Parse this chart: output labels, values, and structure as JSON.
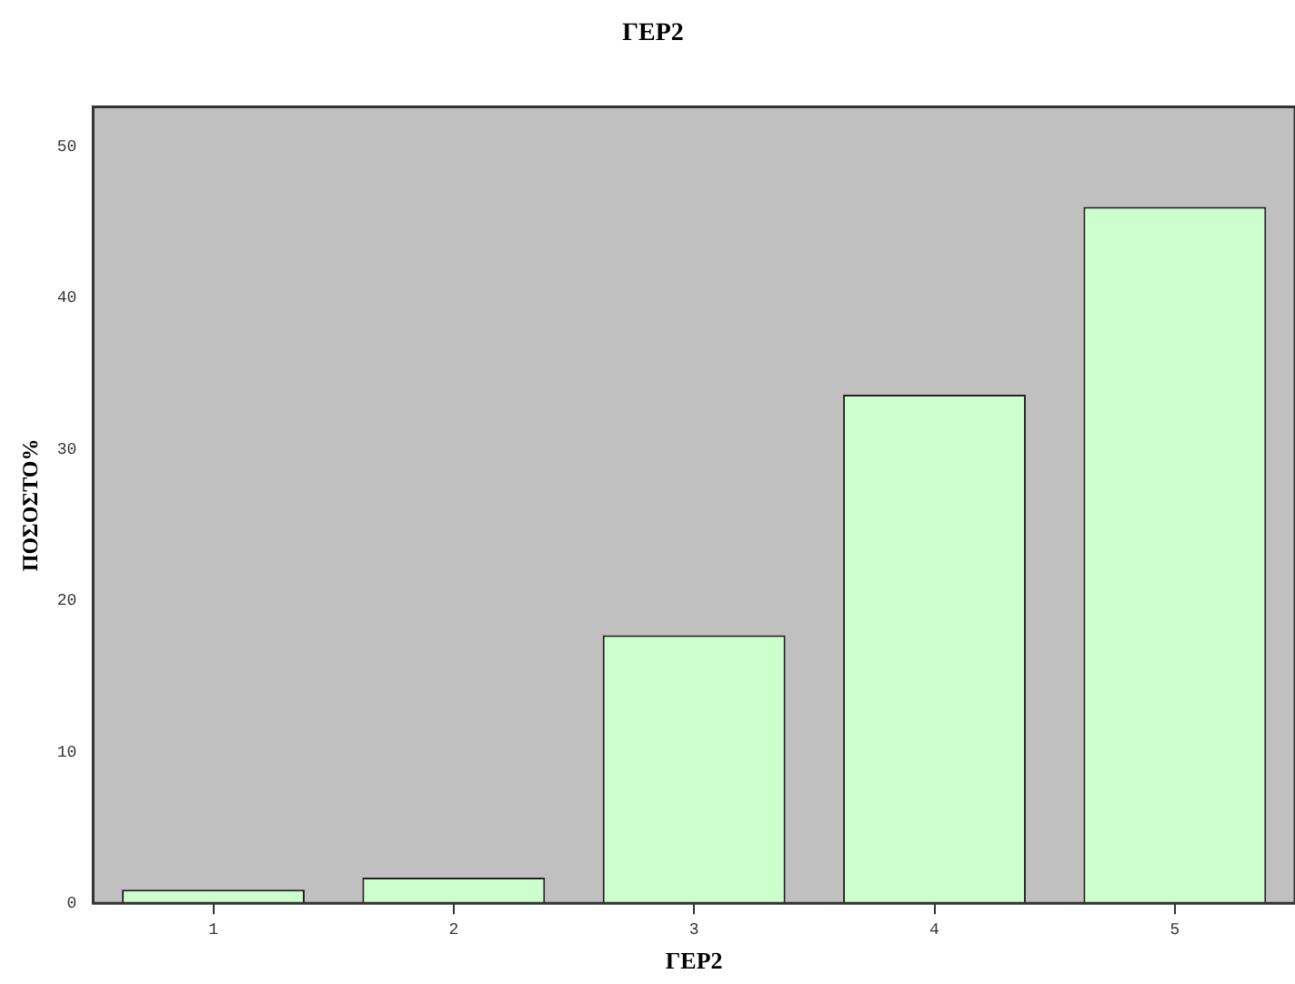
{
  "chart_data": {
    "type": "bar",
    "title": "ΓΕΡ2",
    "xlabel": "ΓΕΡ2",
    "ylabel": "ΠΟΣΟΣΤΟ%",
    "categories": [
      "1",
      "2",
      "3",
      "4",
      "5"
    ],
    "values": [
      0.9,
      1.7,
      17.7,
      33.6,
      46.0
    ],
    "color": "#ccffcc",
    "ylim": [
      0,
      52.6
    ],
    "yticks": [
      0,
      10,
      20,
      30,
      40,
      50
    ],
    "grid": false,
    "legend": false
  }
}
